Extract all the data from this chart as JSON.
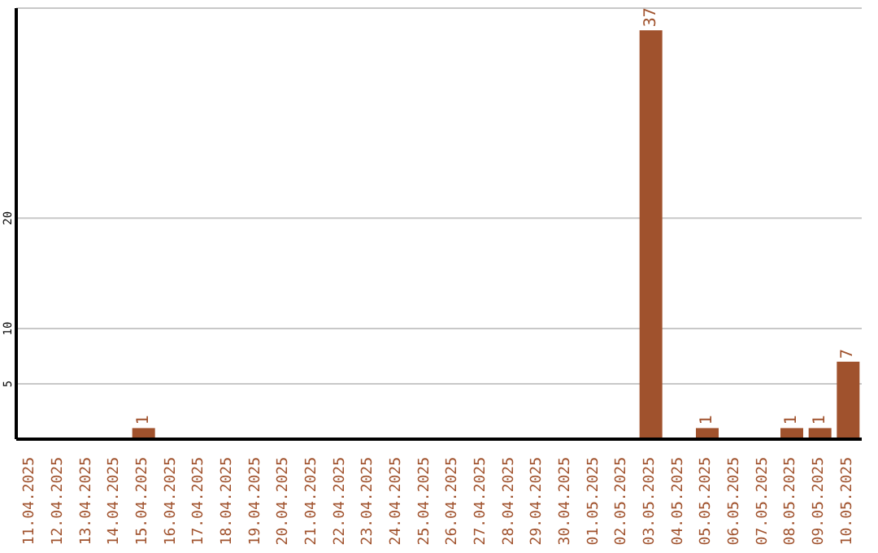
{
  "chart_data": {
    "type": "bar",
    "categories": [
      "11.04.2025",
      "12.04.2025",
      "13.04.2025",
      "14.04.2025",
      "15.04.2025",
      "16.04.2025",
      "17.04.2025",
      "18.04.2025",
      "19.04.2025",
      "20.04.2025",
      "21.04.2025",
      "22.04.2025",
      "23.04.2025",
      "24.04.2025",
      "25.04.2025",
      "26.04.2025",
      "27.04.2025",
      "28.04.2025",
      "29.04.2025",
      "30.04.2025",
      "01.05.2025",
      "02.05.2025",
      "03.05.2025",
      "04.05.2025",
      "05.05.2025",
      "06.05.2025",
      "07.05.2025",
      "08.05.2025",
      "09.05.2025",
      "10.05.2025"
    ],
    "values": [
      0,
      0,
      0,
      0,
      1,
      0,
      0,
      0,
      0,
      0,
      0,
      0,
      0,
      0,
      0,
      0,
      0,
      0,
      0,
      0,
      0,
      0,
      37,
      0,
      1,
      0,
      0,
      1,
      1,
      7
    ],
    "value_labels": [
      null,
      null,
      null,
      null,
      "1",
      null,
      null,
      null,
      null,
      null,
      null,
      null,
      null,
      null,
      null,
      null,
      null,
      null,
      null,
      null,
      null,
      null,
      "37",
      null,
      "1",
      null,
      null,
      "1",
      "1",
      "7"
    ],
    "color": "#a0522d",
    "ylim": [
      0,
      39
    ],
    "yticks": [
      5,
      10,
      20
    ],
    "grid": "y",
    "legend": false
  }
}
